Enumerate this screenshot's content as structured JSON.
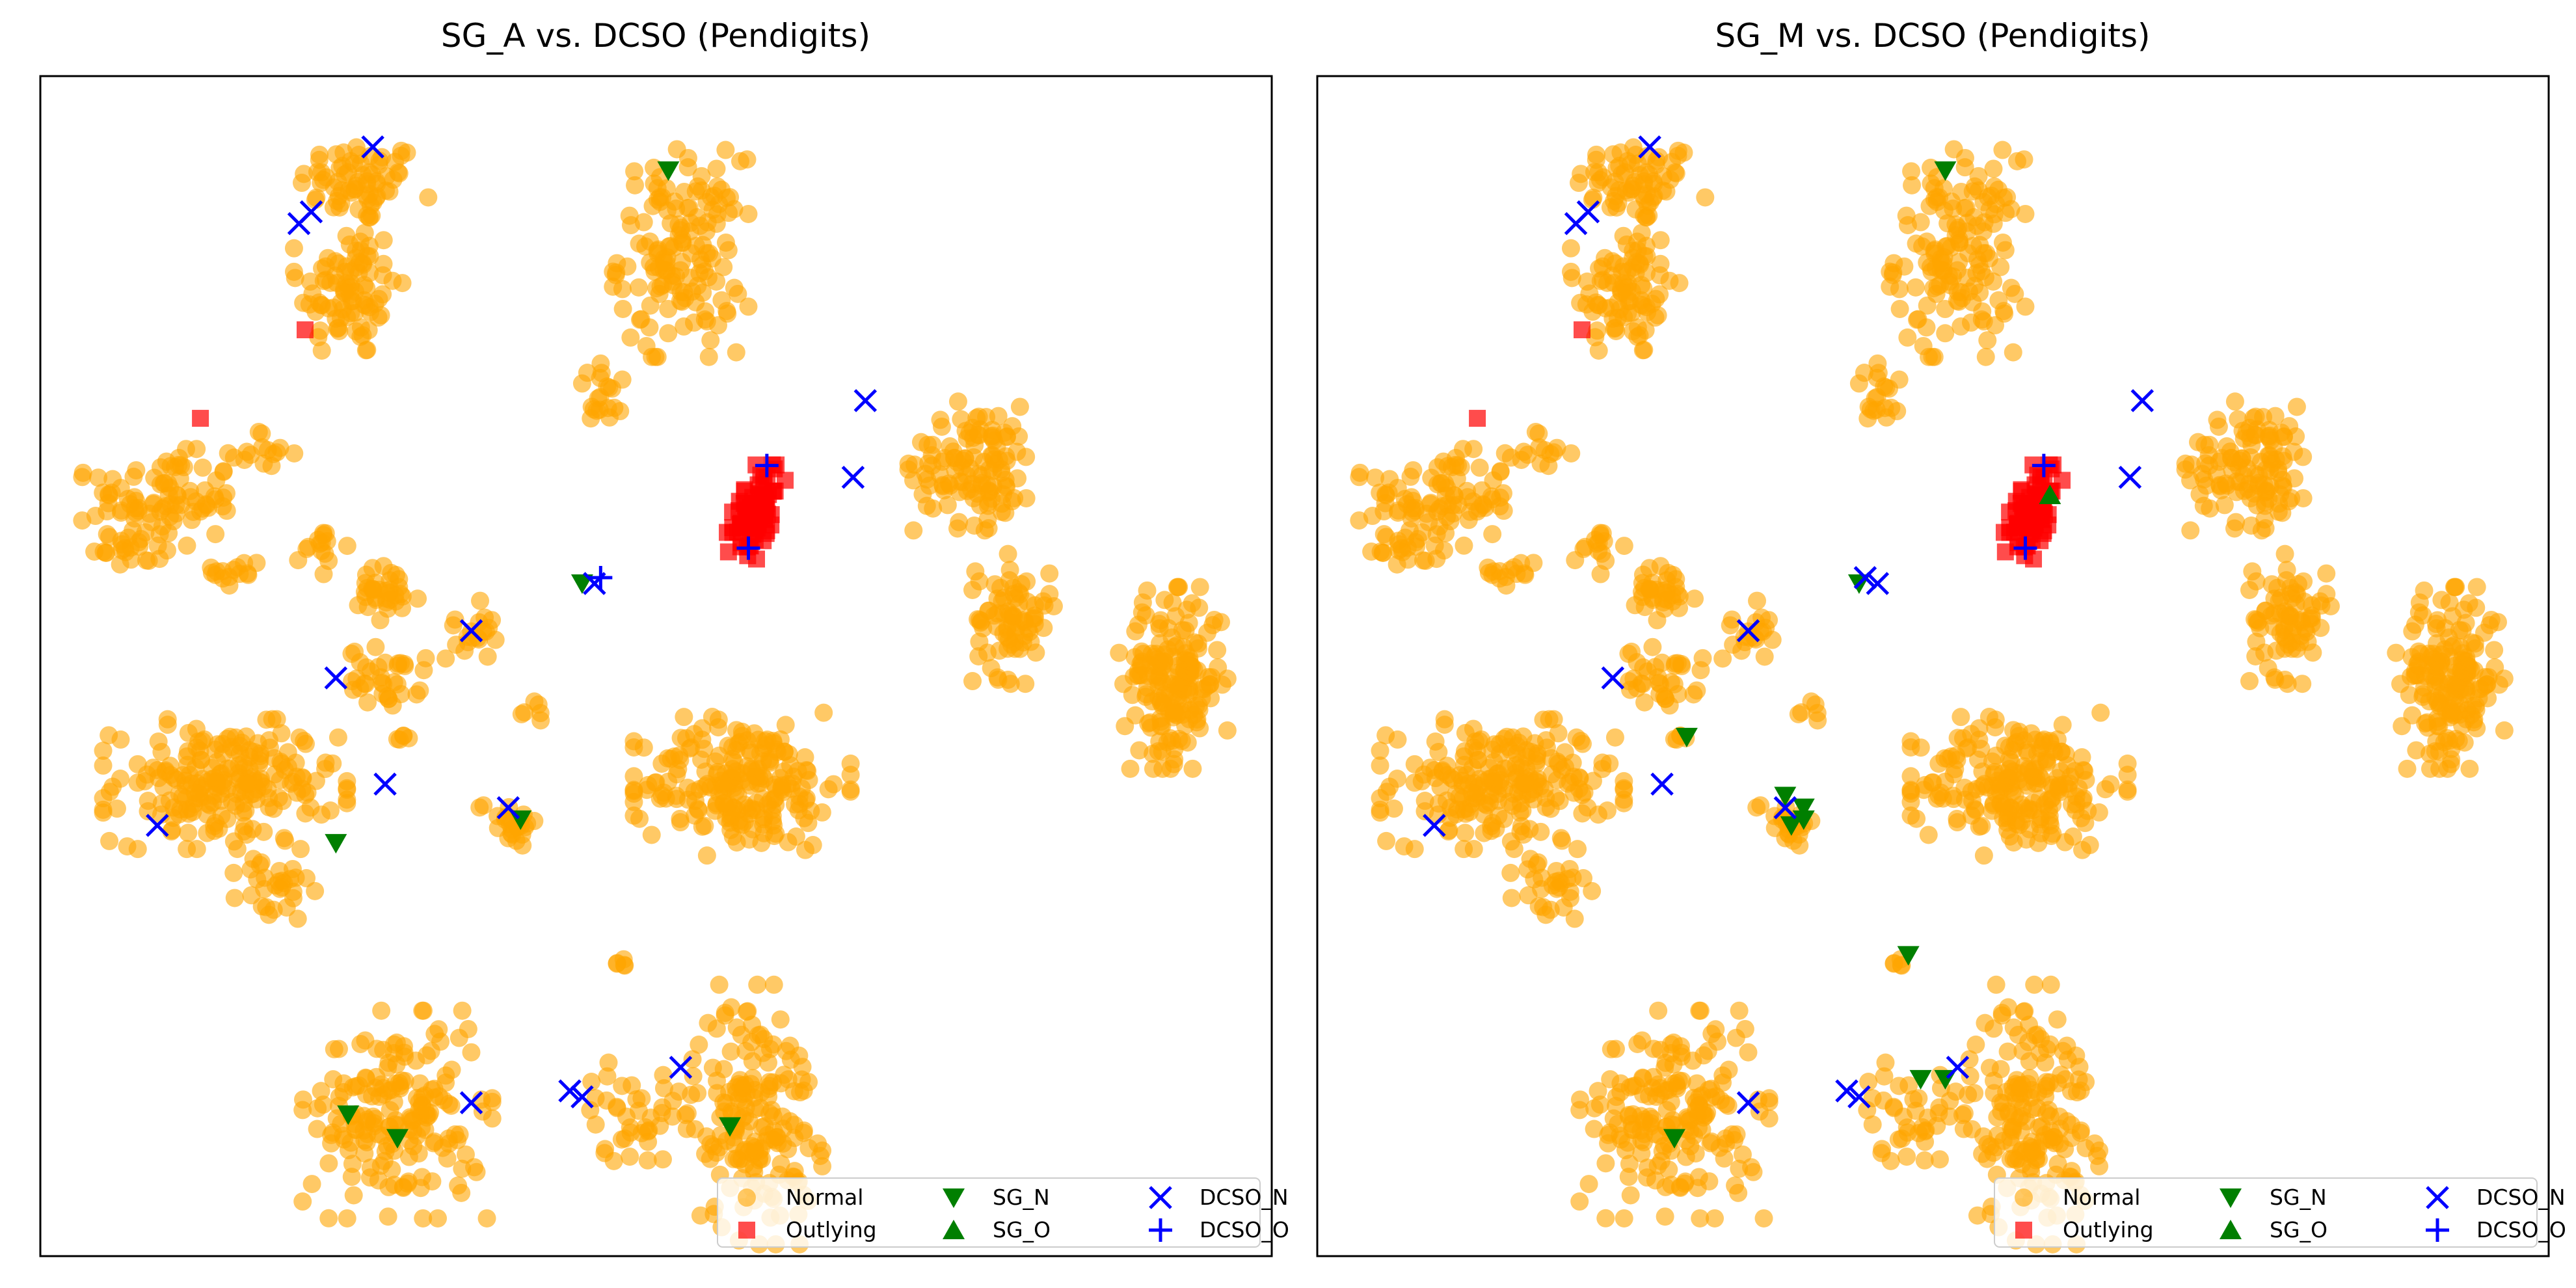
{
  "colors": {
    "normal": "#FFA500",
    "outlying": "#FF0000",
    "sg": "#007F00",
    "dcso": "#0000FF"
  },
  "legend": {
    "normal": "Normal",
    "outlying": "Outlying",
    "sg_n": "SG_N",
    "sg_o": "SG_O",
    "dcso_n": "DCSO_N",
    "dcso_o": "DCSO_O"
  },
  "chart_data": [
    {
      "type": "scatter",
      "title": "SG_A vs. DCSO (Pendigits)",
      "xlabel": "",
      "ylabel": "",
      "xlim": [
        0,
        100
      ],
      "ylim": [
        0,
        100
      ],
      "grid": false,
      "legend_position": "lower-right",
      "clusters": [
        {
          "cx": 26,
          "cy": 91,
          "rx": 5,
          "ry": 3.5,
          "n": 70
        },
        {
          "cx": 25,
          "cy": 82,
          "rx": 4,
          "ry": 6,
          "n": 90
        },
        {
          "cx": 10,
          "cy": 64,
          "rx": 6,
          "ry": 4,
          "n": 90
        },
        {
          "cx": 7,
          "cy": 60,
          "rx": 3,
          "ry": 2,
          "n": 20
        },
        {
          "cx": 16,
          "cy": 58,
          "rx": 2,
          "ry": 1.5,
          "n": 15
        },
        {
          "cx": 18,
          "cy": 68,
          "rx": 2.5,
          "ry": 2,
          "n": 15
        },
        {
          "cx": 52,
          "cy": 85,
          "rx": 5,
          "ry": 8,
          "n": 150
        },
        {
          "cx": 46,
          "cy": 73,
          "rx": 2.5,
          "ry": 2.5,
          "n": 20
        },
        {
          "cx": 28,
          "cy": 56,
          "rx": 3,
          "ry": 2.5,
          "n": 35
        },
        {
          "cx": 23,
          "cy": 60,
          "rx": 2,
          "ry": 2,
          "n": 15
        },
        {
          "cx": 28,
          "cy": 49,
          "rx": 3,
          "ry": 2.5,
          "n": 35
        },
        {
          "cx": 35,
          "cy": 53,
          "rx": 2,
          "ry": 2.5,
          "n": 20
        },
        {
          "cx": 40,
          "cy": 46,
          "rx": 1.2,
          "ry": 1,
          "n": 6
        },
        {
          "cx": 15,
          "cy": 40,
          "rx": 9,
          "ry": 5,
          "n": 220
        },
        {
          "cx": 19,
          "cy": 31,
          "rx": 3,
          "ry": 3,
          "n": 30
        },
        {
          "cx": 29.5,
          "cy": 44,
          "rx": 1,
          "ry": 1,
          "n": 5
        },
        {
          "cx": 38,
          "cy": 37,
          "rx": 2.5,
          "ry": 2,
          "n": 25
        },
        {
          "cx": 57,
          "cy": 40,
          "rx": 8,
          "ry": 5.5,
          "n": 220
        },
        {
          "cx": 76,
          "cy": 67,
          "rx": 5,
          "ry": 5,
          "n": 120
        },
        {
          "cx": 79,
          "cy": 54,
          "rx": 3,
          "ry": 5,
          "n": 80
        },
        {
          "cx": 92,
          "cy": 49,
          "rx": 4,
          "ry": 7,
          "n": 180
        },
        {
          "cx": 29,
          "cy": 12,
          "rx": 7,
          "ry": 8,
          "n": 180
        },
        {
          "cx": 48,
          "cy": 12,
          "rx": 4,
          "ry": 4,
          "n": 40
        },
        {
          "cx": 58,
          "cy": 12,
          "rx": 5,
          "ry": 10,
          "n": 180
        },
        {
          "cx": 47,
          "cy": 24.5,
          "rx": 0.8,
          "ry": 1,
          "n": 5
        },
        {
          "cx": 29,
          "cy": 6,
          "rx": 1,
          "ry": 0.8,
          "n": 5
        }
      ],
      "outlying_cluster": {
        "cx": 58,
        "cy": 63,
        "rx": 2,
        "ry": 4.5,
        "n": 90
      },
      "outlying_points": [
        [
          21.5,
          78.5
        ],
        [
          13,
          71
        ]
      ],
      "sg_n": [
        [
          51,
          92
        ],
        [
          44,
          57
        ],
        [
          39,
          37
        ],
        [
          24,
          35
        ],
        [
          25,
          12
        ],
        [
          29,
          10
        ],
        [
          56,
          11
        ]
      ],
      "sg_o": [],
      "dcso_n": [
        [
          27,
          94
        ],
        [
          21,
          87.5
        ],
        [
          22,
          88.5
        ],
        [
          67,
          72.5
        ],
        [
          66,
          66
        ],
        [
          45,
          57
        ],
        [
          35,
          53
        ],
        [
          24,
          49
        ],
        [
          28,
          40
        ],
        [
          38,
          38
        ],
        [
          9.5,
          36.5
        ],
        [
          35,
          13
        ],
        [
          43,
          14
        ],
        [
          44,
          13.5
        ],
        [
          52,
          16
        ]
      ],
      "dcso_o": [
        [
          59,
          67
        ],
        [
          57.5,
          60
        ],
        [
          45.5,
          57.5
        ]
      ]
    },
    {
      "type": "scatter",
      "title": "SG_M vs. DCSO (Pendigits)",
      "xlabel": "",
      "ylabel": "",
      "xlim": [
        0,
        100
      ],
      "ylim": [
        0,
        100
      ],
      "grid": false,
      "legend_position": "lower-right",
      "clusters": [
        {
          "cx": 26,
          "cy": 91,
          "rx": 5,
          "ry": 3.5,
          "n": 70
        },
        {
          "cx": 25,
          "cy": 82,
          "rx": 4,
          "ry": 6,
          "n": 90
        },
        {
          "cx": 10,
          "cy": 64,
          "rx": 6,
          "ry": 4,
          "n": 90
        },
        {
          "cx": 7,
          "cy": 60,
          "rx": 3,
          "ry": 2,
          "n": 20
        },
        {
          "cx": 16,
          "cy": 58,
          "rx": 2,
          "ry": 1.5,
          "n": 15
        },
        {
          "cx": 18,
          "cy": 68,
          "rx": 2.5,
          "ry": 2,
          "n": 15
        },
        {
          "cx": 52,
          "cy": 85,
          "rx": 5,
          "ry": 8,
          "n": 150
        },
        {
          "cx": 46,
          "cy": 73,
          "rx": 2.5,
          "ry": 2.5,
          "n": 20
        },
        {
          "cx": 28,
          "cy": 56,
          "rx": 3,
          "ry": 2.5,
          "n": 35
        },
        {
          "cx": 23,
          "cy": 60,
          "rx": 2,
          "ry": 2,
          "n": 15
        },
        {
          "cx": 28,
          "cy": 49,
          "rx": 3,
          "ry": 2.5,
          "n": 35
        },
        {
          "cx": 35,
          "cy": 53,
          "rx": 2,
          "ry": 2.5,
          "n": 20
        },
        {
          "cx": 40,
          "cy": 46,
          "rx": 1.2,
          "ry": 1,
          "n": 6
        },
        {
          "cx": 15,
          "cy": 40,
          "rx": 9,
          "ry": 5,
          "n": 220
        },
        {
          "cx": 19,
          "cy": 31,
          "rx": 3,
          "ry": 3,
          "n": 30
        },
        {
          "cx": 29.5,
          "cy": 44,
          "rx": 1,
          "ry": 1,
          "n": 5
        },
        {
          "cx": 38,
          "cy": 37,
          "rx": 2.5,
          "ry": 2,
          "n": 25
        },
        {
          "cx": 57,
          "cy": 40,
          "rx": 8,
          "ry": 5.5,
          "n": 220
        },
        {
          "cx": 76,
          "cy": 67,
          "rx": 5,
          "ry": 5,
          "n": 120
        },
        {
          "cx": 79,
          "cy": 54,
          "rx": 3,
          "ry": 5,
          "n": 80
        },
        {
          "cx": 92,
          "cy": 49,
          "rx": 4,
          "ry": 7,
          "n": 180
        },
        {
          "cx": 29,
          "cy": 12,
          "rx": 7,
          "ry": 8,
          "n": 180
        },
        {
          "cx": 48,
          "cy": 12,
          "rx": 4,
          "ry": 4,
          "n": 40
        },
        {
          "cx": 58,
          "cy": 12,
          "rx": 5,
          "ry": 10,
          "n": 180
        },
        {
          "cx": 47,
          "cy": 24.5,
          "rx": 0.8,
          "ry": 1,
          "n": 5
        },
        {
          "cx": 29,
          "cy": 6,
          "rx": 1,
          "ry": 0.8,
          "n": 5
        }
      ],
      "outlying_cluster": {
        "cx": 58,
        "cy": 63,
        "rx": 2,
        "ry": 4.5,
        "n": 90
      },
      "outlying_points": [
        [
          21.5,
          78.5
        ],
        [
          13,
          71
        ]
      ],
      "sg_n": [
        [
          51,
          92
        ],
        [
          44,
          57
        ],
        [
          30,
          44
        ],
        [
          38,
          39
        ],
        [
          39.5,
          38
        ],
        [
          39.5,
          37
        ],
        [
          38.5,
          36.5
        ],
        [
          48,
          25.5
        ],
        [
          51,
          15
        ],
        [
          49,
          15
        ],
        [
          29,
          10
        ]
      ],
      "sg_o": [
        [
          59.5,
          64.5
        ]
      ],
      "dcso_n": [
        [
          27,
          94
        ],
        [
          21,
          87.5
        ],
        [
          22,
          88.5
        ],
        [
          67,
          72.5
        ],
        [
          66,
          66
        ],
        [
          44.5,
          57.5
        ],
        [
          45.5,
          57
        ],
        [
          35,
          53
        ],
        [
          24,
          49
        ],
        [
          28,
          40
        ],
        [
          38,
          38
        ],
        [
          9.5,
          36.5
        ],
        [
          35,
          13
        ],
        [
          43,
          14
        ],
        [
          44,
          13.5
        ],
        [
          52,
          16
        ]
      ],
      "dcso_o": [
        [
          59,
          67
        ],
        [
          57.5,
          60
        ]
      ]
    }
  ]
}
